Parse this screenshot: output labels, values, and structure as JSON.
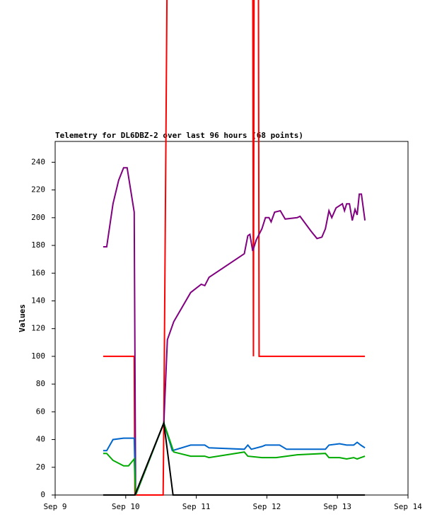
{
  "chart_data": {
    "type": "line",
    "title": "Telemetry for DL6DBZ-2 over last 96 hours (68 points)",
    "y_label": "Values",
    "xlim": [
      9,
      14
    ],
    "xticks": [
      {
        "value": 9,
        "label": "Sep 9"
      },
      {
        "value": 10,
        "label": "Sep 10"
      },
      {
        "value": 11,
        "label": "Sep 11"
      },
      {
        "value": 12,
        "label": "Sep 12"
      },
      {
        "value": 13,
        "label": "Sep 13"
      },
      {
        "value": 14,
        "label": "Sep 14"
      }
    ],
    "ylim": [
      0,
      255
    ],
    "yticks": [
      0,
      20,
      40,
      60,
      80,
      100,
      120,
      140,
      160,
      180,
      200,
      220,
      240
    ],
    "series": [
      {
        "color": "#ff0000",
        "x": [
          9.68,
          10.12,
          10.13,
          10.53,
          10.54,
          10.59,
          11.8,
          11.81,
          11.82,
          11.88,
          11.89,
          13.39
        ],
        "values": [
          100,
          100,
          0,
          0,
          52,
          400,
          400,
          100,
          400,
          400,
          100,
          100
        ]
      },
      {
        "color": "#800080",
        "x": [
          9.68,
          9.73,
          9.82,
          9.9,
          9.97,
          10.02,
          10.12,
          10.14,
          10.54,
          10.59,
          10.68,
          10.92,
          11.07,
          11.12,
          11.18,
          11.68,
          11.73,
          11.76,
          11.8,
          11.85,
          11.93,
          11.98,
          12.03,
          12.06,
          12.11,
          12.19,
          12.26,
          12.43,
          12.47,
          12.63,
          12.71,
          12.78,
          12.83,
          12.88,
          12.92,
          12.98,
          13.07,
          13.1,
          13.13,
          13.17,
          13.21,
          13.25,
          13.28,
          13.31,
          13.34,
          13.39
        ],
        "values": [
          179,
          179,
          210,
          227,
          236,
          236,
          204,
          0,
          52,
          112,
          125,
          146,
          152,
          151,
          157,
          174,
          187,
          188,
          176,
          184,
          192,
          200,
          200,
          197,
          204,
          205,
          199,
          200,
          201,
          190,
          185,
          186,
          192,
          205,
          200,
          207,
          210,
          205,
          210,
          210,
          198,
          206,
          202,
          217,
          217,
          198
        ]
      },
      {
        "color": "#0066cc",
        "x": [
          9.68,
          9.73,
          9.82,
          9.97,
          10.12,
          10.14,
          10.54,
          10.66,
          10.92,
          11.12,
          11.18,
          11.68,
          11.73,
          11.78,
          11.93,
          11.98,
          12.18,
          12.28,
          12.83,
          12.88,
          13.03,
          13.13,
          13.23,
          13.28,
          13.33,
          13.39
        ],
        "values": [
          32,
          32,
          40,
          41,
          41,
          0,
          52,
          32,
          36,
          36,
          34,
          33,
          36,
          33,
          35,
          36,
          36,
          33,
          33,
          36,
          37,
          36,
          36,
          38,
          36,
          34
        ]
      },
      {
        "color": "#00aa00",
        "x": [
          9.68,
          9.73,
          9.82,
          9.97,
          10.04,
          10.12,
          10.14,
          10.54,
          10.68,
          10.92,
          11.12,
          11.18,
          11.68,
          11.73,
          11.93,
          12.13,
          12.43,
          12.83,
          12.88,
          13.03,
          13.13,
          13.23,
          13.28,
          13.39
        ],
        "values": [
          30,
          30,
          25,
          21,
          21,
          26,
          0,
          52,
          31,
          28,
          28,
          27,
          31,
          28,
          27,
          27,
          29,
          30,
          27,
          27,
          26,
          27,
          26,
          28
        ]
      },
      {
        "color": "#000000",
        "x": [
          9.68,
          10.13,
          10.54,
          10.67,
          13.39
        ],
        "values": [
          0,
          0,
          52,
          0,
          0
        ]
      }
    ]
  }
}
